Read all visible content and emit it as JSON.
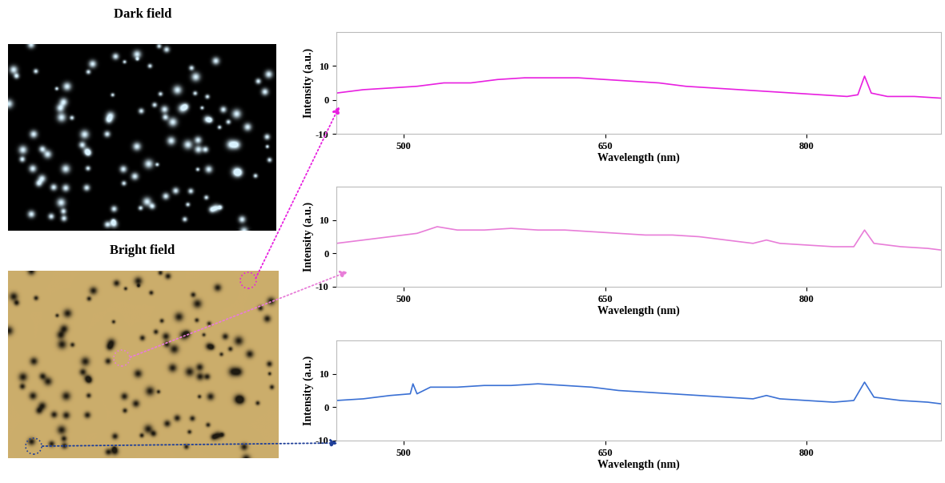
{
  "images": [
    {
      "label": "Dark field"
    },
    {
      "label": "Bright field"
    }
  ],
  "chart_data": [
    {
      "type": "line",
      "xlabel": "Wavelength (nm)",
      "ylabel": "Intensity (a.u.)",
      "xlim": [
        450,
        900
      ],
      "ylim": [
        -10,
        20
      ],
      "xticks": [
        500,
        650,
        800
      ],
      "yticks": [
        -10,
        0,
        10
      ],
      "x": [
        450,
        470,
        490,
        510,
        530,
        550,
        570,
        590,
        610,
        630,
        650,
        670,
        690,
        710,
        730,
        750,
        770,
        790,
        810,
        830,
        838,
        843,
        848,
        860,
        880,
        900
      ],
      "series": [
        {
          "color": "#e81fe0",
          "values": [
            2,
            3,
            3.5,
            4,
            5,
            5,
            6,
            6.5,
            6.5,
            6.5,
            6,
            5.5,
            5,
            4,
            3.5,
            3,
            2.5,
            2,
            1.5,
            1,
            1.5,
            7,
            2,
            1,
            1,
            0.5
          ]
        }
      ]
    },
    {
      "type": "line",
      "xlabel": "Wavelength (nm)",
      "ylabel": "Intensity (a.u.)",
      "xlim": [
        450,
        900
      ],
      "ylim": [
        -10,
        20
      ],
      "xticks": [
        500,
        650,
        800
      ],
      "yticks": [
        -10,
        0,
        10
      ],
      "x": [
        450,
        470,
        490,
        510,
        525,
        540,
        560,
        580,
        600,
        620,
        640,
        660,
        680,
        700,
        720,
        740,
        760,
        770,
        780,
        800,
        820,
        835,
        843,
        850,
        870,
        890,
        900
      ],
      "series": [
        {
          "color": "#e87dd8",
          "values": [
            3,
            4,
            5,
            6,
            8,
            7,
            7,
            7.5,
            7,
            7,
            6.5,
            6,
            5.5,
            5.5,
            5,
            4,
            3,
            4,
            3,
            2.5,
            2,
            2,
            7,
            3,
            2,
            1.5,
            1
          ]
        }
      ]
    },
    {
      "type": "line",
      "xlabel": "Wavelength (nm)",
      "ylabel": "Intensity (a.u.)",
      "xlim": [
        450,
        900
      ],
      "ylim": [
        -10,
        20
      ],
      "xticks": [
        500,
        650,
        800
      ],
      "yticks": [
        -10,
        0,
        10
      ],
      "x": [
        450,
        470,
        490,
        505,
        507,
        510,
        520,
        540,
        560,
        580,
        600,
        620,
        640,
        660,
        680,
        700,
        720,
        740,
        760,
        770,
        780,
        800,
        820,
        835,
        843,
        850,
        870,
        890,
        900
      ],
      "series": [
        {
          "color": "#3a70d4",
          "values": [
            2,
            2.5,
            3.5,
            4,
            7,
            4,
            6,
            6,
            6.5,
            6.5,
            7,
            6.5,
            6,
            5,
            4.5,
            4,
            3.5,
            3,
            2.5,
            3.5,
            2.5,
            2,
            1.5,
            2,
            7.5,
            3,
            2,
            1.5,
            1
          ]
        }
      ]
    }
  ]
}
